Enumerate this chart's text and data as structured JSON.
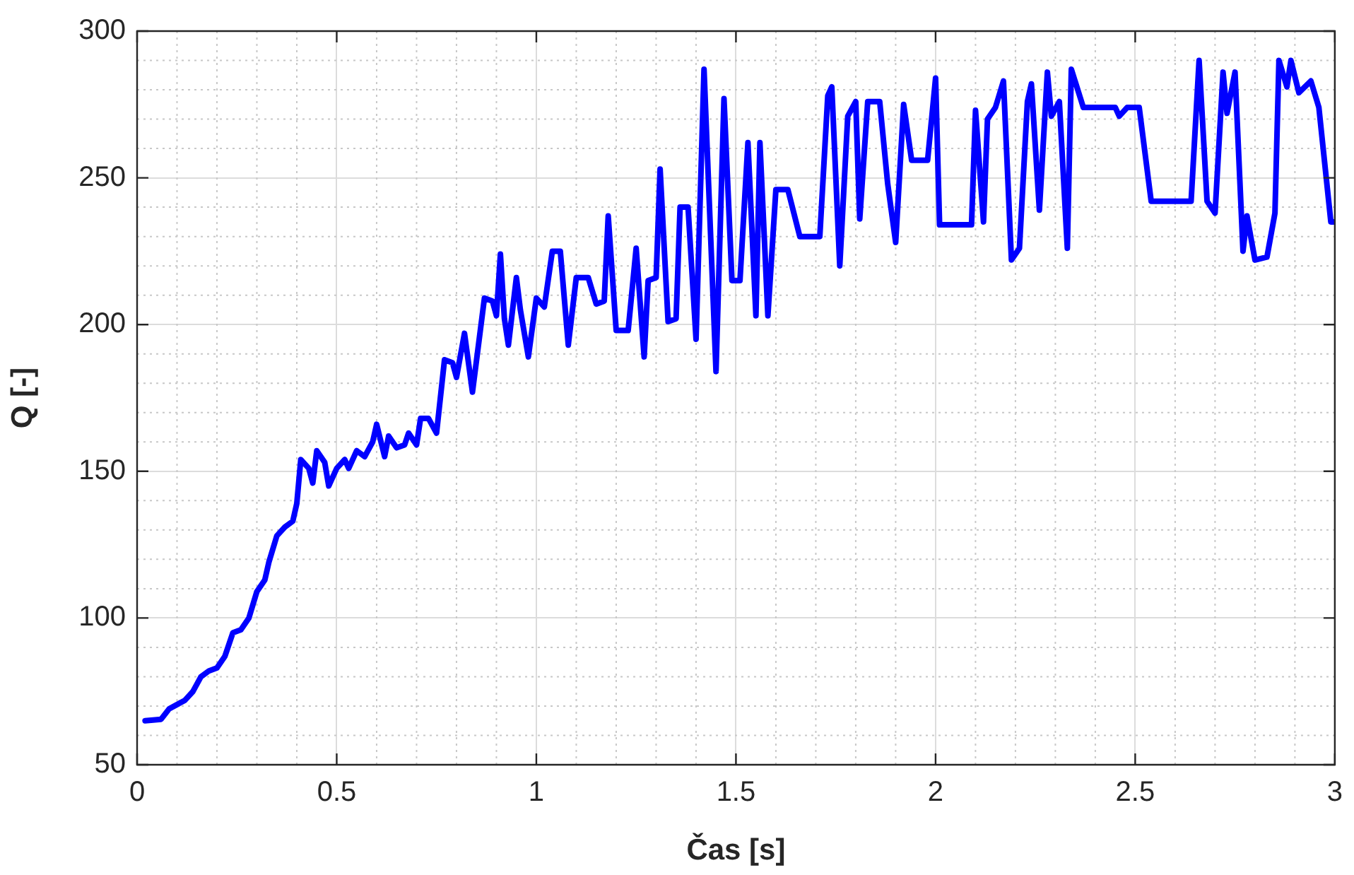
{
  "chart_data": {
    "type": "line",
    "xlabel": "Čas [s]",
    "ylabel": "Q [-]",
    "x": [
      0.02,
      0.06,
      0.08,
      0.12,
      0.14,
      0.16,
      0.18,
      0.2,
      0.22,
      0.24,
      0.26,
      0.28,
      0.3,
      0.32,
      0.33,
      0.35,
      0.37,
      0.39,
      0.4,
      0.41,
      0.43,
      0.44,
      0.45,
      0.47,
      0.48,
      0.5,
      0.52,
      0.53,
      0.55,
      0.57,
      0.59,
      0.6,
      0.62,
      0.63,
      0.65,
      0.67,
      0.68,
      0.7,
      0.71,
      0.73,
      0.75,
      0.77,
      0.79,
      0.8,
      0.82,
      0.84,
      0.87,
      0.89,
      0.9,
      0.91,
      0.92,
      0.93,
      0.95,
      0.96,
      0.98,
      1.0,
      1.02,
      1.04,
      1.06,
      1.08,
      1.1,
      1.13,
      1.15,
      1.17,
      1.18,
      1.2,
      1.23,
      1.25,
      1.27,
      1.28,
      1.3,
      1.31,
      1.33,
      1.35,
      1.36,
      1.38,
      1.4,
      1.42,
      1.45,
      1.47,
      1.49,
      1.51,
      1.53,
      1.55,
      1.56,
      1.58,
      1.6,
      1.63,
      1.66,
      1.71,
      1.73,
      1.74,
      1.76,
      1.78,
      1.8,
      1.81,
      1.83,
      1.86,
      1.88,
      1.9,
      1.92,
      1.94,
      1.98,
      2.0,
      2.01,
      2.09,
      2.1,
      2.12,
      2.13,
      2.15,
      2.17,
      2.19,
      2.21,
      2.23,
      2.24,
      2.26,
      2.28,
      2.29,
      2.31,
      2.33,
      2.34,
      2.37,
      2.45,
      2.46,
      2.48,
      2.51,
      2.54,
      2.64,
      2.66,
      2.68,
      2.7,
      2.72,
      2.73,
      2.75,
      2.77,
      2.78,
      2.8,
      2.83,
      2.85,
      2.86,
      2.88,
      2.89,
      2.91,
      2.94,
      2.96,
      2.99,
      3.0
    ],
    "series": [
      {
        "color": "#0000ff",
        "values": [
          65,
          65.5,
          69,
          72,
          75,
          80,
          82,
          83,
          87,
          95,
          96,
          100,
          109,
          113,
          119,
          128,
          131,
          133,
          139,
          154,
          151,
          146,
          157,
          153,
          145,
          151,
          154,
          151,
          157,
          155,
          160,
          166,
          155,
          162,
          158,
          159,
          163,
          159,
          168,
          168,
          163,
          188,
          187,
          182,
          197,
          177,
          209,
          208,
          203,
          224,
          202,
          193,
          216,
          205,
          189,
          209,
          206,
          225,
          225,
          193,
          216,
          216,
          207,
          208,
          237,
          198,
          198,
          226,
          189,
          215,
          216,
          253,
          201,
          202,
          240,
          240,
          195,
          287,
          184,
          277,
          215,
          215,
          262,
          203,
          262,
          203,
          246,
          246,
          230,
          230,
          278,
          281,
          220,
          271,
          276,
          236,
          276,
          276,
          248,
          228,
          275,
          256,
          256,
          284,
          234,
          234,
          273,
          235,
          270,
          274,
          283,
          222,
          226,
          276,
          282,
          239,
          286,
          271,
          276,
          226,
          287,
          274,
          274,
          271,
          274,
          274,
          242,
          242,
          290,
          242,
          238,
          286,
          272,
          286,
          225,
          237,
          222,
          223,
          238,
          290,
          281,
          290,
          279,
          283,
          274,
          235,
          235
        ]
      }
    ],
    "xlim": [
      0,
      3
    ],
    "xticks": [
      0,
      0.5,
      1,
      1.5,
      2,
      2.5,
      3
    ],
    "ylim": [
      50,
      300
    ],
    "yticks": [
      50,
      100,
      150,
      200,
      250,
      300
    ],
    "grid": true,
    "legend": false,
    "marker": "none",
    "line_style": "solid"
  }
}
